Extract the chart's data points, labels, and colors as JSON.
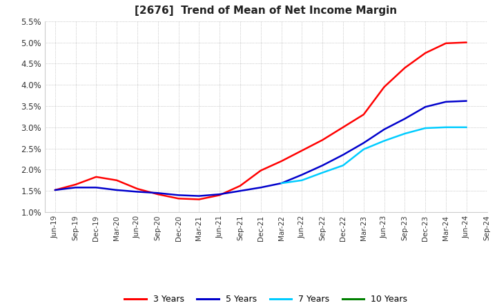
{
  "title": "[2676]  Trend of Mean of Net Income Margin",
  "title_fontsize": 11,
  "background_color": "#ffffff",
  "grid_color": "#999999",
  "ylim": [
    0.01,
    0.055
  ],
  "yticks": [
    0.01,
    0.015,
    0.02,
    0.025,
    0.03,
    0.035,
    0.04,
    0.045,
    0.05,
    0.055
  ],
  "x_labels": [
    "Jun-19",
    "Sep-19",
    "Dec-19",
    "Mar-20",
    "Jun-20",
    "Sep-20",
    "Dec-20",
    "Mar-21",
    "Jun-21",
    "Sep-21",
    "Dec-21",
    "Mar-22",
    "Jun-22",
    "Sep-22",
    "Dec-22",
    "Mar-23",
    "Jun-23",
    "Sep-23",
    "Dec-23",
    "Mar-24",
    "Jun-24",
    "Sep-24"
  ],
  "series": [
    {
      "label": "3 Years",
      "color": "#ff0000",
      "linewidth": 1.8,
      "data_x": [
        0,
        1,
        2,
        3,
        4,
        5,
        6,
        7,
        8,
        9,
        10,
        11,
        12,
        13,
        14,
        15,
        16,
        17,
        18,
        19,
        20
      ],
      "data_y": [
        0.0152,
        0.0165,
        0.0183,
        0.0175,
        0.0155,
        0.0142,
        0.0132,
        0.013,
        0.014,
        0.0162,
        0.0198,
        0.022,
        0.0245,
        0.027,
        0.03,
        0.033,
        0.0395,
        0.044,
        0.0475,
        0.0498,
        0.05
      ]
    },
    {
      "label": "5 Years",
      "color": "#0000cc",
      "linewidth": 1.8,
      "data_x": [
        0,
        1,
        2,
        3,
        4,
        5,
        6,
        7,
        8,
        9,
        10,
        11,
        12,
        13,
        14,
        15,
        16,
        17,
        18,
        19,
        20
      ],
      "data_y": [
        0.0152,
        0.0158,
        0.0158,
        0.0152,
        0.0148,
        0.0145,
        0.014,
        0.0138,
        0.0142,
        0.015,
        0.0158,
        0.0168,
        0.0188,
        0.021,
        0.0235,
        0.0263,
        0.0295,
        0.032,
        0.0348,
        0.036,
        0.0362
      ]
    },
    {
      "label": "7 Years",
      "color": "#00ccff",
      "linewidth": 1.8,
      "data_x": [
        11,
        12,
        13,
        14,
        15,
        16,
        17,
        18,
        19,
        20
      ],
      "data_y": [
        0.0168,
        0.0175,
        0.0193,
        0.021,
        0.0248,
        0.0268,
        0.0285,
        0.0298,
        0.03,
        0.03
      ]
    },
    {
      "label": "10 Years",
      "color": "#008000",
      "linewidth": 1.8,
      "data_x": [],
      "data_y": []
    }
  ],
  "legend_labels": [
    "3 Years",
    "5 Years",
    "7 Years",
    "10 Years"
  ],
  "legend_colors": [
    "#ff0000",
    "#0000cc",
    "#00ccff",
    "#008000"
  ]
}
